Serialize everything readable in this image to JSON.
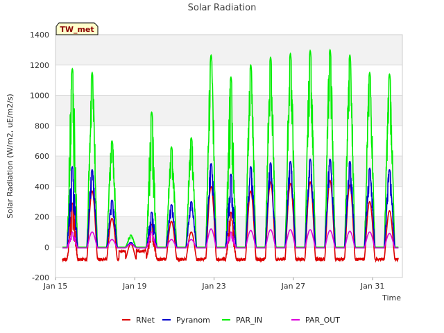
{
  "chart_data": {
    "type": "line",
    "title": "Solar Radiation",
    "xlabel": "Time",
    "ylabel": "Solar Radiation (W/m2, uE/m2/s)",
    "badge": "TW_met",
    "xlim": [
      0,
      17.5
    ],
    "ylim": [
      -200,
      1400
    ],
    "x_ticks": [
      {
        "value": 0,
        "label": "Jan 15"
      },
      {
        "value": 4,
        "label": "Jan 19"
      },
      {
        "value": 8,
        "label": "Jan 23"
      },
      {
        "value": 12,
        "label": "Jan 27"
      },
      {
        "value": 16,
        "label": "Jan 31"
      }
    ],
    "y_ticks": [
      -200,
      0,
      200,
      400,
      600,
      800,
      1000,
      1200,
      1400
    ],
    "grid": true,
    "legend_position": "bottom",
    "series": [
      {
        "name": "RNet",
        "color": "#dd0000",
        "peaks": [
          290,
          370,
          190,
          20,
          150,
          170,
          100,
          400,
          230,
          370,
          430,
          420,
          430,
          440,
          410,
          300,
          240
        ],
        "night": -80
      },
      {
        "name": "Pyranom",
        "color": "#0000cc",
        "peaks": [
          530,
          510,
          310,
          30,
          230,
          280,
          300,
          550,
          480,
          530,
          555,
          565,
          580,
          580,
          565,
          520,
          510
        ],
        "night": -5
      },
      {
        "name": "PAR_IN",
        "color": "#00ee00",
        "peaks": [
          1175,
          1150,
          700,
          80,
          890,
          660,
          720,
          1265,
          1120,
          1200,
          1250,
          1275,
          1295,
          1300,
          1265,
          1150,
          1140
        ],
        "night": 0
      },
      {
        "name": "PAR_OUT",
        "color": "#dd00dd",
        "peaks": [
          100,
          100,
          50,
          20,
          100,
          50,
          50,
          120,
          100,
          110,
          115,
          115,
          115,
          110,
          105,
          100,
          90
        ],
        "night": -5
      }
    ],
    "day_centers": [
      0.85,
      1.85,
      2.85,
      3.8,
      4.85,
      5.85,
      6.85,
      7.85,
      8.85,
      9.85,
      10.85,
      11.85,
      12.85,
      13.85,
      14.85,
      15.85,
      16.85
    ]
  }
}
